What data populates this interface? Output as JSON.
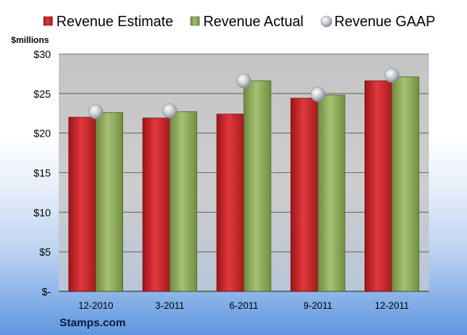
{
  "chart_data": {
    "type": "bar",
    "categories": [
      "12-2010",
      "3-2011",
      "6-2011",
      "9-2011",
      "12-2011"
    ],
    "series": [
      {
        "name": "Revenue Estimate",
        "kind": "bar",
        "color": "#c8282c",
        "values": [
          22.0,
          21.9,
          22.4,
          24.4,
          26.6
        ]
      },
      {
        "name": "Revenue Actual",
        "kind": "bar",
        "color": "#8aa45a",
        "values": [
          22.6,
          22.7,
          26.6,
          24.8,
          27.1
        ]
      },
      {
        "name": "Revenue GAAP",
        "kind": "marker",
        "color": "#b8bcc4",
        "values": [
          22.7,
          22.8,
          26.6,
          24.9,
          27.3
        ]
      }
    ],
    "ylabel": "$millions",
    "ylim": [
      0,
      30
    ],
    "yticks": [
      0,
      5,
      10,
      15,
      20,
      25,
      30
    ],
    "ytick_labels": [
      "$-",
      "$5",
      "$10",
      "$15",
      "$20",
      "$25",
      "$30"
    ],
    "grid": true,
    "legend": "top"
  },
  "source_label": "Stamps.com"
}
